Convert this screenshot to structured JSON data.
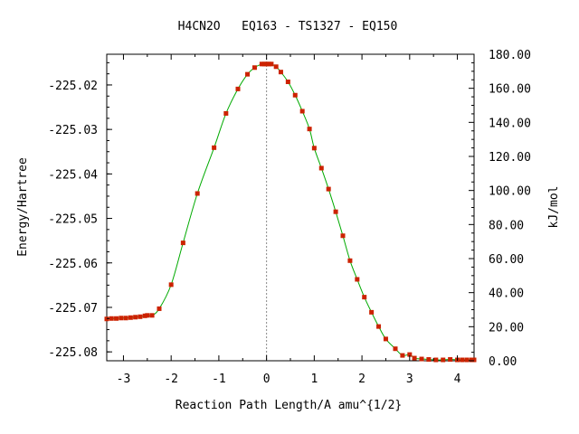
{
  "chart_data": {
    "type": "scatter",
    "title": "H4CN2O   EQ163 - TS1327 - EQ150",
    "xlabel": "Reaction Path Length/A amu^{1/2}",
    "ylabel": "Energy/Hartree",
    "y2label": "kJ/mol",
    "xlim": [
      -3.35,
      4.35
    ],
    "ylim": [
      -225.082,
      -225.0131
    ],
    "y2lim": [
      0,
      180
    ],
    "grid": false,
    "x_ticks": [
      -3,
      -2,
      -1,
      0,
      1,
      2,
      3,
      4
    ],
    "x_tick_labels": [
      "-3",
      "-2",
      "-1",
      "0",
      "1",
      "2",
      "3",
      "4"
    ],
    "y_ticks": [
      -225.02,
      -225.03,
      -225.04,
      -225.05,
      -225.06,
      -225.07,
      -225.08
    ],
    "y_tick_labels": [
      "-225.02",
      "-225.03",
      "-225.04",
      "-225.05",
      "-225.06",
      "-225.07",
      "-225.08"
    ],
    "y2_ticks": [
      0,
      20,
      40,
      60,
      80,
      100,
      120,
      140,
      160,
      180
    ],
    "y2_tick_labels": [
      "0.00",
      "20.00",
      "40.00",
      "60.00",
      "80.00",
      "100.00",
      "120.00",
      "140.00",
      "160.00",
      "180.00"
    ],
    "ts_marker_x": 0,
    "colors": {
      "curve": "#00aa00",
      "points": "#cc2200",
      "ts_line": "#888888",
      "axes": "#000000"
    },
    "points": {
      "x": [
        -3.35,
        -3.25,
        -3.15,
        -3.05,
        -2.95,
        -2.85,
        -2.75,
        -2.65,
        -2.55,
        -2.5,
        -2.4,
        -2.25,
        -2.0,
        -1.75,
        -1.45,
        -1.1,
        -0.85,
        -0.6,
        -0.4,
        -0.25,
        -0.1,
        -0.05,
        0.0,
        0.05,
        0.1,
        0.2,
        0.3,
        0.45,
        0.6,
        0.75,
        0.9,
        1.0,
        1.15,
        1.3,
        1.45,
        1.6,
        1.75,
        1.9,
        2.05,
        2.2,
        2.35,
        2.5,
        2.7,
        2.85,
        3.0,
        3.1,
        3.25,
        3.4,
        3.55,
        3.7,
        3.85,
        4.0,
        4.1,
        4.2,
        4.3,
        4.35
      ],
      "y": [
        -225.0726,
        -225.0725,
        -225.0725,
        -225.0724,
        -225.0724,
        -225.0723,
        -225.0722,
        -225.0721,
        -225.0719,
        -225.0718,
        -225.0718,
        -225.0703,
        -225.0649,
        -225.0555,
        -225.0444,
        -225.0341,
        -225.0264,
        -225.0209,
        -225.0176,
        -225.0161,
        -225.0153,
        -225.0153,
        -225.0153,
        -225.0153,
        -225.0153,
        -225.0159,
        -225.0171,
        -225.0193,
        -225.0223,
        -225.0259,
        -225.0299,
        -225.0342,
        -225.0387,
        -225.0434,
        -225.0485,
        -225.0539,
        -225.0595,
        -225.0637,
        -225.0677,
        -225.0711,
        -225.0743,
        -225.0771,
        -225.0793,
        -225.0808,
        -225.0806,
        -225.0814,
        -225.0816,
        -225.0817,
        -225.0818,
        -225.0818,
        -225.0817,
        -225.0818,
        -225.0818,
        -225.0818,
        -225.0818,
        -225.0818
      ]
    }
  }
}
